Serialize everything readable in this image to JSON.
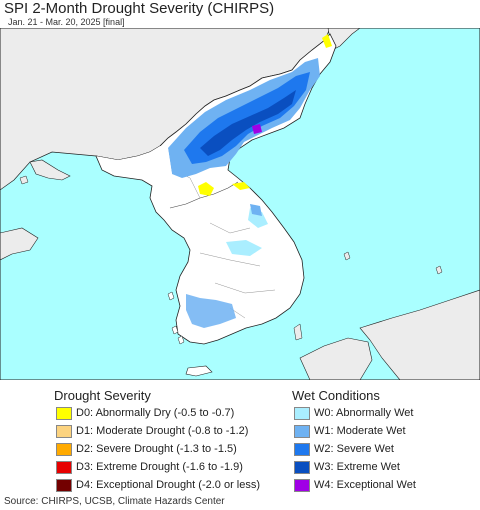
{
  "title": "SPI 2-Month Drought Severity (CHIRPS)",
  "subtitle": "Jan. 21 - Mar. 20, 2025 [final]",
  "colors": {
    "ocean": "#aaffff",
    "land": "#ffffff",
    "outside_land": "#ececec"
  },
  "legend": {
    "drought_title": "Drought Severity",
    "drought": [
      {
        "label": "D0: Abnormally Dry (-0.5 to -0.7)",
        "color": "#ffff00"
      },
      {
        "label": "D1: Moderate Drought (-0.8 to -1.2)",
        "color": "#fcd37f"
      },
      {
        "label": "D2: Severe Drought (-1.3 to -1.5)",
        "color": "#ffaa00"
      },
      {
        "label": "D3: Extreme Drought (-1.6 to -1.9)",
        "color": "#e60000"
      },
      {
        "label": "D4: Exceptional Drought (-2.0 or less)",
        "color": "#730000"
      }
    ],
    "wet_title": "Wet Conditions",
    "wet": [
      {
        "label": "W0: Abnormally Wet",
        "color": "#aaeeff"
      },
      {
        "label": "W1: Moderate Wet",
        "color": "#6fb2f2"
      },
      {
        "label": "W2: Severe Wet",
        "color": "#1e78ee"
      },
      {
        "label": "W3: Extreme Wet",
        "color": "#0a4fc0"
      },
      {
        "label": "W4: Exceptional Wet",
        "color": "#a000e6"
      }
    ]
  },
  "source": "Source: CHIRPS, UCSB, Climate Hazards Center"
}
